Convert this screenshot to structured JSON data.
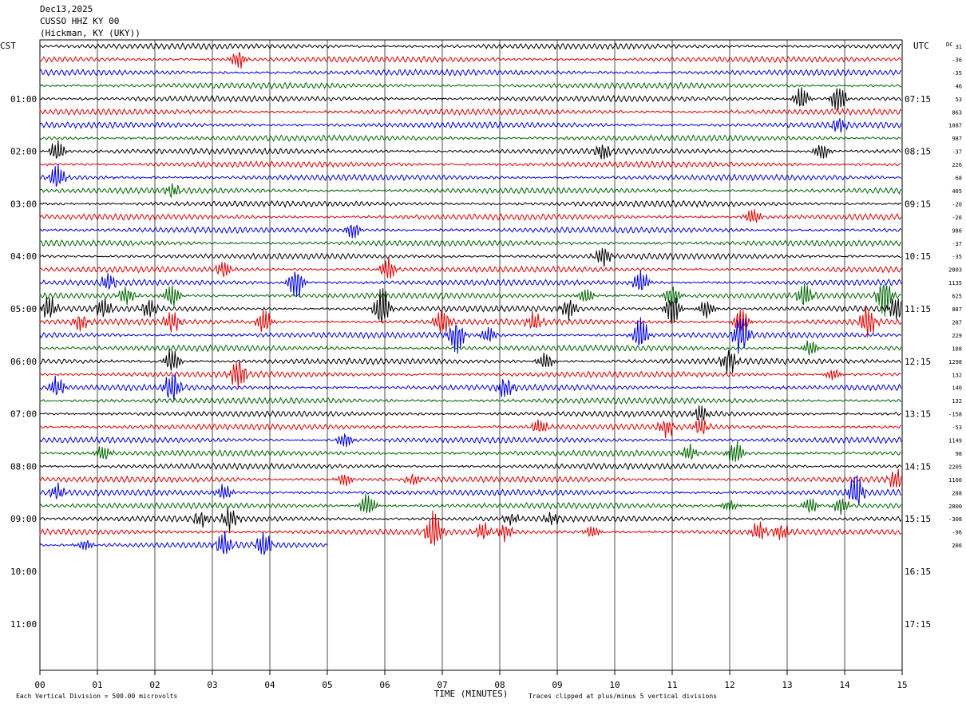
{
  "header": {
    "date": "Dec13,2025",
    "station": "CUSSO HHZ KY 00",
    "location": "(Hickman, KY (UKY))"
  },
  "chart_data": {
    "type": "line",
    "title": "CUSSO HHZ KY 00",
    "left_axis_title": "CST",
    "right_axis_title": "UTC",
    "dc_label": "DC",
    "xlabel": "TIME (MINUTES)",
    "xlim": [
      0,
      15
    ],
    "x_ticks": [
      "00",
      "01",
      "02",
      "03",
      "04",
      "05",
      "06",
      "07",
      "08",
      "09",
      "10",
      "11",
      "12",
      "13",
      "14",
      "15"
    ],
    "left_time_labels": [
      "01:00",
      "02:00",
      "03:00",
      "04:00",
      "05:00",
      "06:00",
      "07:00",
      "08:00",
      "09:00",
      "10:00",
      "11:00"
    ],
    "right_time_labels": [
      "07:15",
      "08:15",
      "09:15",
      "10:15",
      "11:15",
      "12:15",
      "13:15",
      "14:15",
      "15:15",
      "16:15",
      "17:15"
    ],
    "traces_per_hour": 4,
    "rows_total": 48,
    "colors": [
      "#000000",
      "#e00000",
      "#0000e0",
      "#006600"
    ],
    "dc_offsets": [
      "31",
      "-36",
      "-35",
      "46",
      "53",
      "863",
      "1087",
      "987",
      "-37",
      "226",
      "68",
      "405",
      "-20",
      "-26",
      "986",
      "-37",
      "-35",
      "2803",
      "1135",
      "625",
      "887",
      "287",
      "229",
      "108",
      "1298",
      "132",
      "140",
      "132",
      "-158",
      "-53",
      "1149",
      "98",
      "2205",
      "1100",
      "288",
      "2800",
      "-308",
      "-96",
      "206"
    ],
    "active_traces": 39,
    "last_trace_end_minute": 5.0,
    "events": [
      {
        "row": 1,
        "minute": 3.45,
        "amp": 2.2
      },
      {
        "row": 4,
        "minute": 13.25,
        "amp": 3
      },
      {
        "row": 4,
        "minute": 13.9,
        "amp": 3.5
      },
      {
        "row": 6,
        "minute": 13.9,
        "amp": 2
      },
      {
        "row": 8,
        "minute": 0.3,
        "amp": 2.5
      },
      {
        "row": 8,
        "minute": 9.8,
        "amp": 2
      },
      {
        "row": 8,
        "minute": 13.6,
        "amp": 2
      },
      {
        "row": 10,
        "minute": 0.3,
        "amp": 3
      },
      {
        "row": 11,
        "minute": 2.3,
        "amp": 1.5
      },
      {
        "row": 13,
        "minute": 12.4,
        "amp": 2
      },
      {
        "row": 14,
        "minute": 5.45,
        "amp": 2
      },
      {
        "row": 16,
        "minute": 9.8,
        "amp": 2.5
      },
      {
        "row": 17,
        "minute": 3.2,
        "amp": 2
      },
      {
        "row": 17,
        "minute": 6.05,
        "amp": 3
      },
      {
        "row": 18,
        "minute": 1.2,
        "amp": 2
      },
      {
        "row": 18,
        "minute": 4.45,
        "amp": 4
      },
      {
        "row": 18,
        "minute": 10.45,
        "amp": 3
      },
      {
        "row": 19,
        "minute": 1.5,
        "amp": 2
      },
      {
        "row": 19,
        "minute": 2.3,
        "amp": 3
      },
      {
        "row": 19,
        "minute": 9.5,
        "amp": 2
      },
      {
        "row": 19,
        "minute": 11.0,
        "amp": 3
      },
      {
        "row": 19,
        "minute": 13.3,
        "amp": 3
      },
      {
        "row": 19,
        "minute": 14.7,
        "amp": 5
      },
      {
        "row": 20,
        "minute": 0.15,
        "amp": 3
      },
      {
        "row": 20,
        "minute": 1.1,
        "amp": 2.5
      },
      {
        "row": 20,
        "minute": 1.9,
        "amp": 2.5
      },
      {
        "row": 20,
        "minute": 5.95,
        "amp": 5
      },
      {
        "row": 20,
        "minute": 9.2,
        "amp": 2.5
      },
      {
        "row": 20,
        "minute": 11.0,
        "amp": 4
      },
      {
        "row": 20,
        "minute": 11.6,
        "amp": 2.5
      },
      {
        "row": 20,
        "minute": 14.9,
        "amp": 3
      },
      {
        "row": 21,
        "minute": 0.7,
        "amp": 2
      },
      {
        "row": 21,
        "minute": 2.3,
        "amp": 3
      },
      {
        "row": 21,
        "minute": 3.9,
        "amp": 3
      },
      {
        "row": 21,
        "minute": 7.0,
        "amp": 3.5
      },
      {
        "row": 21,
        "minute": 8.6,
        "amp": 2.5
      },
      {
        "row": 21,
        "minute": 12.2,
        "amp": 3
      },
      {
        "row": 21,
        "minute": 14.4,
        "amp": 4
      },
      {
        "row": 22,
        "minute": 7.25,
        "amp": 4
      },
      {
        "row": 22,
        "minute": 7.8,
        "amp": 2
      },
      {
        "row": 22,
        "minute": 10.45,
        "amp": 4
      },
      {
        "row": 22,
        "minute": 12.2,
        "amp": 5
      },
      {
        "row": 23,
        "minute": 13.4,
        "amp": 2
      },
      {
        "row": 24,
        "minute": 2.3,
        "amp": 3
      },
      {
        "row": 24,
        "minute": 8.8,
        "amp": 2
      },
      {
        "row": 24,
        "minute": 12.0,
        "amp": 3
      },
      {
        "row": 25,
        "minute": 3.45,
        "amp": 4
      },
      {
        "row": 25,
        "minute": 13.8,
        "amp": 1.5
      },
      {
        "row": 26,
        "minute": 0.3,
        "amp": 2.5
      },
      {
        "row": 26,
        "minute": 2.3,
        "amp": 4
      },
      {
        "row": 26,
        "minute": 8.1,
        "amp": 2.5
      },
      {
        "row": 28,
        "minute": 11.5,
        "amp": 2
      },
      {
        "row": 29,
        "minute": 8.7,
        "amp": 2
      },
      {
        "row": 29,
        "minute": 10.9,
        "amp": 2
      },
      {
        "row": 29,
        "minute": 11.5,
        "amp": 2
      },
      {
        "row": 30,
        "minute": 5.3,
        "amp": 2
      },
      {
        "row": 31,
        "minute": 1.1,
        "amp": 2
      },
      {
        "row": 31,
        "minute": 11.3,
        "amp": 2
      },
      {
        "row": 31,
        "minute": 12.1,
        "amp": 3
      },
      {
        "row": 33,
        "minute": 5.3,
        "amp": 1.5
      },
      {
        "row": 33,
        "minute": 6.5,
        "amp": 1.5
      },
      {
        "row": 33,
        "minute": 14.9,
        "amp": 2.5
      },
      {
        "row": 34,
        "minute": 0.3,
        "amp": 2
      },
      {
        "row": 34,
        "minute": 3.2,
        "amp": 2
      },
      {
        "row": 34,
        "minute": 14.2,
        "amp": 4
      },
      {
        "row": 35,
        "minute": 5.7,
        "amp": 3
      },
      {
        "row": 35,
        "minute": 12.0,
        "amp": 1.5
      },
      {
        "row": 35,
        "minute": 13.4,
        "amp": 2
      },
      {
        "row": 35,
        "minute": 13.95,
        "amp": 2
      },
      {
        "row": 36,
        "minute": 2.8,
        "amp": 2
      },
      {
        "row": 36,
        "minute": 3.3,
        "amp": 3
      },
      {
        "row": 36,
        "minute": 8.2,
        "amp": 1.5
      },
      {
        "row": 36,
        "minute": 8.9,
        "amp": 1.5
      },
      {
        "row": 37,
        "minute": 6.85,
        "amp": 5
      },
      {
        "row": 37,
        "minute": 7.7,
        "amp": 2
      },
      {
        "row": 37,
        "minute": 8.1,
        "amp": 2
      },
      {
        "row": 37,
        "minute": 9.6,
        "amp": 1.5
      },
      {
        "row": 37,
        "minute": 12.5,
        "amp": 2.5
      },
      {
        "row": 37,
        "minute": 12.9,
        "amp": 2
      },
      {
        "row": 38,
        "minute": 0.8,
        "amp": 1.5
      },
      {
        "row": 38,
        "minute": 3.2,
        "amp": 3
      },
      {
        "row": 38,
        "minute": 3.9,
        "amp": 3
      }
    ],
    "footer_left": "Each Vertical Division =  500.00 microvolts",
    "footer_right": "Traces clipped at plus/minus 5 vertical divisions"
  }
}
